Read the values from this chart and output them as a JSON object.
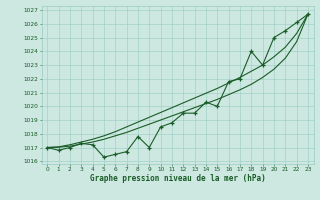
{
  "x": [
    0,
    1,
    2,
    3,
    4,
    5,
    6,
    7,
    8,
    9,
    10,
    11,
    12,
    13,
    14,
    15,
    16,
    17,
    18,
    19,
    20,
    21,
    22,
    23
  ],
  "y_main": [
    1017.0,
    1016.8,
    1017.0,
    1017.3,
    1017.2,
    1016.3,
    1016.5,
    1016.7,
    1017.8,
    1017.0,
    1018.5,
    1018.8,
    1019.5,
    1019.5,
    1020.3,
    1020.0,
    1021.8,
    1022.0,
    1024.0,
    1023.0,
    1025.0,
    1025.5,
    1026.1,
    1026.7
  ],
  "y_upper": [
    1017.0,
    1017.05,
    1017.2,
    1017.4,
    1017.6,
    1017.85,
    1018.15,
    1018.5,
    1018.85,
    1019.2,
    1019.55,
    1019.9,
    1020.25,
    1020.6,
    1020.95,
    1021.3,
    1021.7,
    1022.1,
    1022.55,
    1023.0,
    1023.6,
    1024.3,
    1025.3,
    1026.7
  ],
  "y_lower": [
    1017.0,
    1017.02,
    1017.1,
    1017.25,
    1017.4,
    1017.6,
    1017.85,
    1018.1,
    1018.4,
    1018.7,
    1019.0,
    1019.3,
    1019.6,
    1019.9,
    1020.2,
    1020.5,
    1020.85,
    1021.2,
    1021.6,
    1022.1,
    1022.7,
    1023.5,
    1024.7,
    1026.7
  ],
  "ylim": [
    1015.8,
    1027.3
  ],
  "xlim": [
    -0.5,
    23.5
  ],
  "yticks": [
    1016,
    1017,
    1018,
    1019,
    1020,
    1021,
    1022,
    1023,
    1024,
    1025,
    1026,
    1027
  ],
  "xticks": [
    0,
    1,
    2,
    3,
    4,
    5,
    6,
    7,
    8,
    9,
    10,
    11,
    12,
    13,
    14,
    15,
    16,
    17,
    18,
    19,
    20,
    21,
    22,
    23
  ],
  "bg_color": "#cce8e0",
  "grid_color": "#99ccc2",
  "line_color": "#1a5c28",
  "xlabel": "Graphe pression niveau de la mer (hPa)",
  "marker_size": 3.5,
  "line_width": 0.8
}
